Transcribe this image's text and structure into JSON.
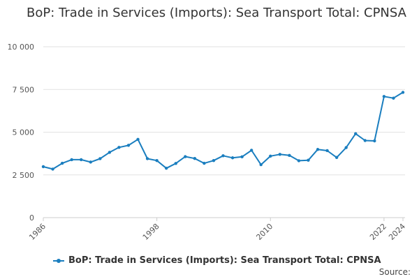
{
  "chart_data": {
    "type": "line",
    "title": "BoP: Trade in Services (Imports): Sea Transport Total: CPNSA",
    "xlabel": "",
    "ylabel": "",
    "x": [
      1986,
      1987,
      1988,
      1989,
      1990,
      1991,
      1992,
      1993,
      1994,
      1995,
      1996,
      1997,
      1998,
      1999,
      2000,
      2001,
      2002,
      2003,
      2004,
      2005,
      2006,
      2007,
      2008,
      2009,
      2010,
      2011,
      2012,
      2013,
      2014,
      2015,
      2016,
      2017,
      2018,
      2019,
      2020,
      2021,
      2022,
      2023,
      2024
    ],
    "series": [
      {
        "name": "BoP: Trade in Services (Imports): Sea Transport Total: CPNSA",
        "values": [
          2980,
          2840,
          3180,
          3390,
          3390,
          3250,
          3450,
          3820,
          4110,
          4230,
          4580,
          3450,
          3340,
          2890,
          3170,
          3570,
          3460,
          3180,
          3340,
          3620,
          3500,
          3560,
          3940,
          3100,
          3600,
          3700,
          3640,
          3330,
          3360,
          3990,
          3920,
          3520,
          4100,
          4910,
          4510,
          4490,
          7090,
          6990,
          7330
        ]
      }
    ],
    "xticks": [
      "1986",
      "1998",
      "2010",
      "2022",
      "2024"
    ],
    "yticks": [
      "0",
      "2 500",
      "5 000",
      "7 500",
      "10 000"
    ],
    "ylim": [
      0,
      10000
    ],
    "xlim": [
      1986,
      2024
    ],
    "grid": true,
    "legend_position": "bottom",
    "color": "#1a7ebf",
    "source_label": "Source:"
  }
}
